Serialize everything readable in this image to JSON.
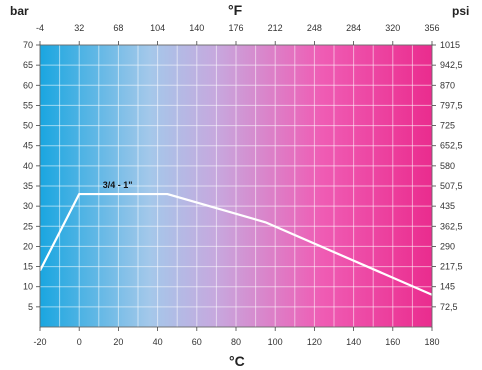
{
  "chart_data": {
    "type": "line",
    "x_unit": "°C",
    "x_top_unit": "°F",
    "y_left_unit": "bar",
    "y_right_unit": "psi",
    "x_ticks": [
      "-20",
      "0",
      "20",
      "40",
      "60",
      "80",
      "100",
      "120",
      "140",
      "160",
      "180"
    ],
    "x_top_ticks": [
      "-4",
      "32",
      "68",
      "104",
      "140",
      "176",
      "212",
      "248",
      "284",
      "320",
      "356"
    ],
    "y_left_ticks": [
      "5",
      "10",
      "15",
      "20",
      "25",
      "30",
      "35",
      "40",
      "45",
      "50",
      "55",
      "60",
      "65",
      "70"
    ],
    "y_right_ticks": [
      "72,5",
      "145",
      "217,5",
      "290",
      "362,5",
      "435",
      "507,5",
      "580",
      "652,5",
      "725",
      "797,5",
      "870",
      "942,5",
      "1015"
    ],
    "xlim": [
      -20,
      180
    ],
    "ylim": [
      0,
      70
    ],
    "grid": true,
    "series": [
      {
        "name": "3/4 - 1\"",
        "x": [
          -20,
          0,
          45,
          95,
          180
        ],
        "y": [
          14,
          33,
          33,
          26,
          8
        ]
      }
    ],
    "gradient_colors": [
      "#1aa6e0",
      "#a4c8ea",
      "#c7a8de",
      "#ef5cb4",
      "#ea2c8e"
    ]
  }
}
